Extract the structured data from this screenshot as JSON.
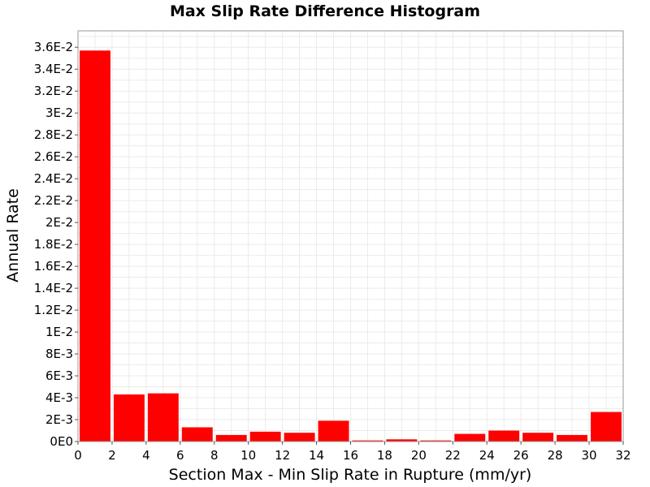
{
  "chart_data": {
    "type": "bar",
    "title": "Max Slip Rate Difference Histogram",
    "xlabel": "Section Max - Min Slip Rate in Rupture (mm/yr)",
    "ylabel": "Annual Rate",
    "xlim": [
      0,
      32
    ],
    "ylim": [
      0,
      0.0375
    ],
    "bin_width": 2,
    "bar_color": "#ff0000",
    "grid": true,
    "x_ticks": [
      {
        "value": 0,
        "label": "0"
      },
      {
        "value": 2,
        "label": "2"
      },
      {
        "value": 4,
        "label": "4"
      },
      {
        "value": 6,
        "label": "6"
      },
      {
        "value": 8,
        "label": "8"
      },
      {
        "value": 10,
        "label": "10"
      },
      {
        "value": 12,
        "label": "12"
      },
      {
        "value": 14,
        "label": "14"
      },
      {
        "value": 16,
        "label": "16"
      },
      {
        "value": 18,
        "label": "18"
      },
      {
        "value": 20,
        "label": "20"
      },
      {
        "value": 22,
        "label": "22"
      },
      {
        "value": 24,
        "label": "24"
      },
      {
        "value": 26,
        "label": "26"
      },
      {
        "value": 28,
        "label": "28"
      },
      {
        "value": 30,
        "label": "30"
      },
      {
        "value": 32,
        "label": "32"
      }
    ],
    "y_ticks": [
      {
        "value": 0,
        "label": "0E0"
      },
      {
        "value": 0.002,
        "label": "2E-3"
      },
      {
        "value": 0.004,
        "label": "4E-3"
      },
      {
        "value": 0.006,
        "label": "6E-3"
      },
      {
        "value": 0.008,
        "label": "8E-3"
      },
      {
        "value": 0.01,
        "label": "1E-2"
      },
      {
        "value": 0.012,
        "label": "1.2E-2"
      },
      {
        "value": 0.014,
        "label": "1.4E-2"
      },
      {
        "value": 0.016,
        "label": "1.6E-2"
      },
      {
        "value": 0.018,
        "label": "1.8E-2"
      },
      {
        "value": 0.02,
        "label": "2E-2"
      },
      {
        "value": 0.022,
        "label": "2.2E-2"
      },
      {
        "value": 0.024,
        "label": "2.4E-2"
      },
      {
        "value": 0.026,
        "label": "2.6E-2"
      },
      {
        "value": 0.028,
        "label": "2.8E-2"
      },
      {
        "value": 0.03,
        "label": "3E-2"
      },
      {
        "value": 0.032,
        "label": "3.2E-2"
      },
      {
        "value": 0.034,
        "label": "3.4E-2"
      },
      {
        "value": 0.036,
        "label": "3.6E-2"
      }
    ],
    "bins": [
      {
        "x": 1,
        "value": 0.0357
      },
      {
        "x": 3,
        "value": 0.0043
      },
      {
        "x": 5,
        "value": 0.0044
      },
      {
        "x": 7,
        "value": 0.0013
      },
      {
        "x": 9,
        "value": 0.0006
      },
      {
        "x": 11,
        "value": 0.0009
      },
      {
        "x": 13,
        "value": 0.0008
      },
      {
        "x": 15,
        "value": 0.0019
      },
      {
        "x": 17,
        "value": 0.0001
      },
      {
        "x": 19,
        "value": 0.0002
      },
      {
        "x": 21,
        "value": 0.0001
      },
      {
        "x": 23,
        "value": 0.0007
      },
      {
        "x": 25,
        "value": 0.001
      },
      {
        "x": 27,
        "value": 0.0008
      },
      {
        "x": 29,
        "value": 0.0006
      },
      {
        "x": 31,
        "value": 0.0027
      }
    ]
  }
}
